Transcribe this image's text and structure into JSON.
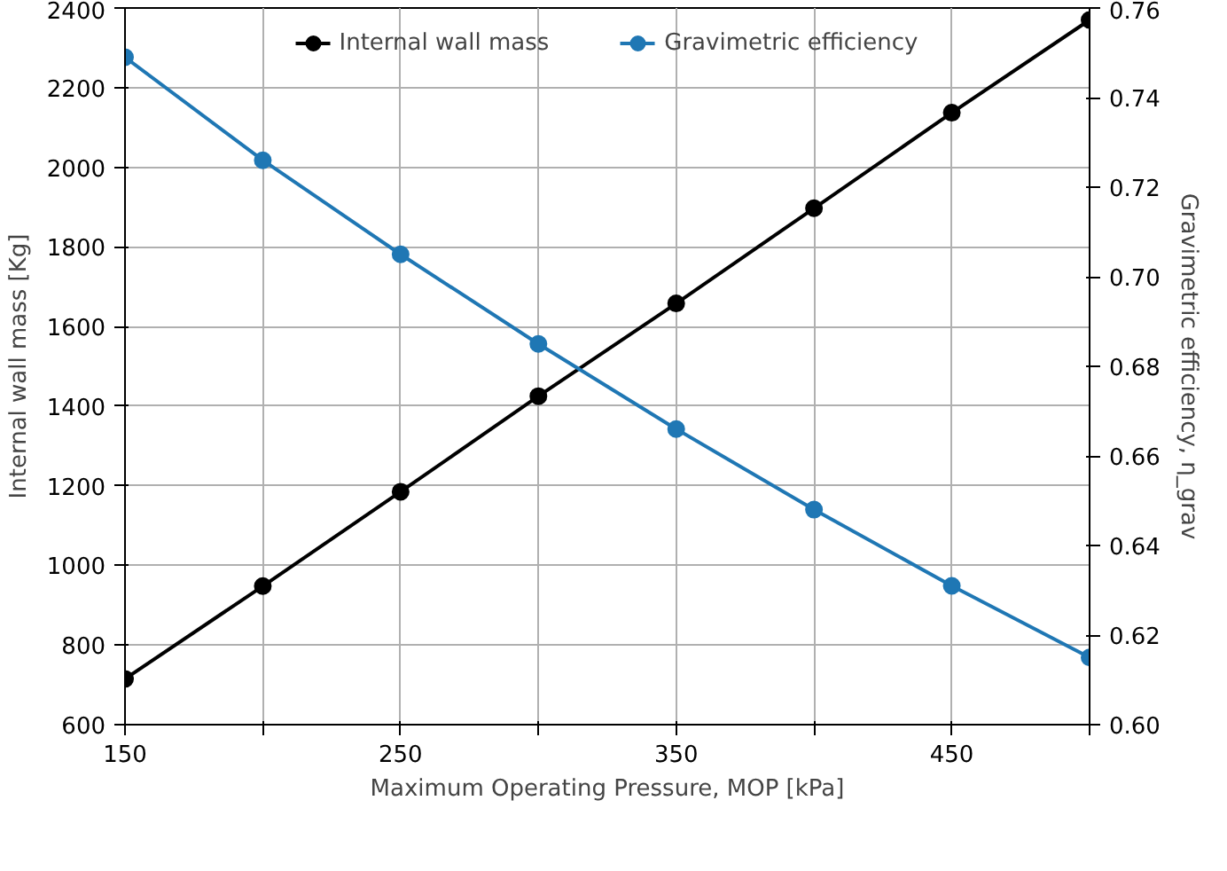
{
  "chart_data": {
    "type": "line",
    "xlabel": "Maximum Operating Pressure, MOP [kPa]",
    "ylabel": "Internal wall mass [Kg]",
    "y2label": "Gravimetric efficiency, η_grav",
    "x": [
      150,
      200,
      250,
      300,
      350,
      400,
      450,
      500
    ],
    "series": [
      {
        "name": "Internal wall mass",
        "color": "#000000",
        "values": [
          715,
          948,
          1185,
          1425,
          1658,
          1897,
          2137,
          2370
        ]
      },
      {
        "name": "Gravimetric efficiency",
        "color": "#1f77b4",
        "axis": "y2",
        "values": [
          0.749,
          0.726,
          0.705,
          0.685,
          0.666,
          0.648,
          0.631,
          0.615
        ]
      }
    ],
    "xlim": [
      150,
      500
    ],
    "xticks": [
      150,
      {
        "value": 200,
        "label": null
      },
      250,
      {
        "value": 300,
        "label": null
      },
      350,
      {
        "value": 400,
        "label": null
      },
      450,
      {
        "value": 500,
        "label": null
      }
    ],
    "ylim": [
      600,
      2400
    ],
    "yticks": [
      600,
      800,
      1000,
      1200,
      1400,
      1600,
      1800,
      2000,
      2200,
      2400
    ],
    "y2lim": [
      0.6,
      0.76
    ],
    "y2ticks": [
      {
        "value": 0.6,
        "label": "0.60"
      },
      0.62,
      0.64,
      0.66,
      0.68,
      {
        "value": 0.7,
        "label": "0.70"
      },
      0.72,
      0.74,
      0.76
    ],
    "grid": true,
    "legend": "top",
    "marker": "circle",
    "line_style": "solid"
  }
}
